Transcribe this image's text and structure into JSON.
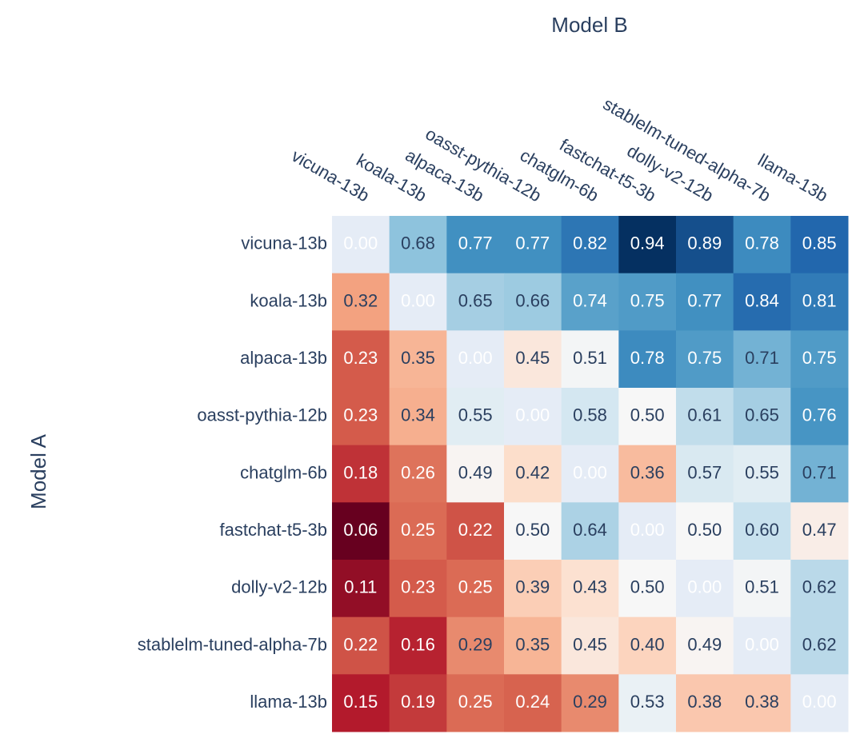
{
  "chart_data": {
    "type": "heatmap",
    "x_title": "Model B",
    "y_title": "Model A",
    "categories_x": [
      "vicuna-13b",
      "koala-13b",
      "alpaca-13b",
      "oasst-pythia-12b",
      "chatglm-6b",
      "fastchat-t5-3b",
      "dolly-v2-12b",
      "stablelm-tuned-alpha-7b",
      "llama-13b"
    ],
    "categories_y": [
      "vicuna-13b",
      "koala-13b",
      "alpaca-13b",
      "oasst-pythia-12b",
      "chatglm-6b",
      "fastchat-t5-3b",
      "dolly-v2-12b",
      "stablelm-tuned-alpha-7b",
      "llama-13b"
    ],
    "values": [
      [
        null,
        0.68,
        0.77,
        0.77,
        0.82,
        0.94,
        0.89,
        0.78,
        0.85
      ],
      [
        0.32,
        null,
        0.65,
        0.66,
        0.74,
        0.75,
        0.77,
        0.84,
        0.81
      ],
      [
        0.23,
        0.35,
        null,
        0.45,
        0.51,
        0.78,
        0.75,
        0.71,
        0.75
      ],
      [
        0.23,
        0.34,
        0.55,
        null,
        0.58,
        0.5,
        0.61,
        0.65,
        0.76
      ],
      [
        0.18,
        0.26,
        0.49,
        0.42,
        null,
        0.36,
        0.57,
        0.55,
        0.71
      ],
      [
        0.06,
        0.25,
        0.22,
        0.5,
        0.64,
        null,
        0.5,
        0.6,
        0.47
      ],
      [
        0.11,
        0.23,
        0.25,
        0.39,
        0.43,
        0.5,
        null,
        0.51,
        0.62
      ],
      [
        0.22,
        0.16,
        0.29,
        0.35,
        0.45,
        0.4,
        0.49,
        null,
        0.62
      ],
      [
        0.15,
        0.19,
        0.25,
        0.24,
        0.29,
        0.53,
        0.38,
        0.38,
        null
      ]
    ],
    "value_labels": [
      [
        "0.00",
        "0.68",
        "0.77",
        "0.77",
        "0.82",
        "0.94",
        "0.89",
        "0.78",
        "0.85"
      ],
      [
        "0.32",
        "0.00",
        "0.65",
        "0.66",
        "0.74",
        "0.75",
        "0.77",
        "0.84",
        "0.81"
      ],
      [
        "0.23",
        "0.35",
        "0.00",
        "0.45",
        "0.51",
        "0.78",
        "0.75",
        "0.71",
        "0.75"
      ],
      [
        "0.23",
        "0.34",
        "0.55",
        "0.00",
        "0.58",
        "0.50",
        "0.61",
        "0.65",
        "0.76"
      ],
      [
        "0.18",
        "0.26",
        "0.49",
        "0.42",
        "0.00",
        "0.36",
        "0.57",
        "0.55",
        "0.71"
      ],
      [
        "0.06",
        "0.25",
        "0.22",
        "0.50",
        "0.64",
        "0.00",
        "0.50",
        "0.60",
        "0.47"
      ],
      [
        "0.11",
        "0.23",
        "0.25",
        "0.39",
        "0.43",
        "0.50",
        "0.00",
        "0.51",
        "0.62"
      ],
      [
        "0.22",
        "0.16",
        "0.29",
        "0.35",
        "0.45",
        "0.40",
        "0.49",
        "0.00",
        "0.62"
      ],
      [
        "0.15",
        "0.19",
        "0.25",
        "0.24",
        "0.29",
        "0.53",
        "0.38",
        "0.38",
        "0.00"
      ]
    ],
    "zlim": [
      0.06,
      0.94
    ],
    "colorscale": [
      "#67001f",
      "#b2182b",
      "#d6604d",
      "#f4a582",
      "#fddbc7",
      "#f7f7f7",
      "#d1e5f0",
      "#92c5de",
      "#4393c3",
      "#2166ac",
      "#053061"
    ],
    "missing_color": "#e5ecf6"
  }
}
